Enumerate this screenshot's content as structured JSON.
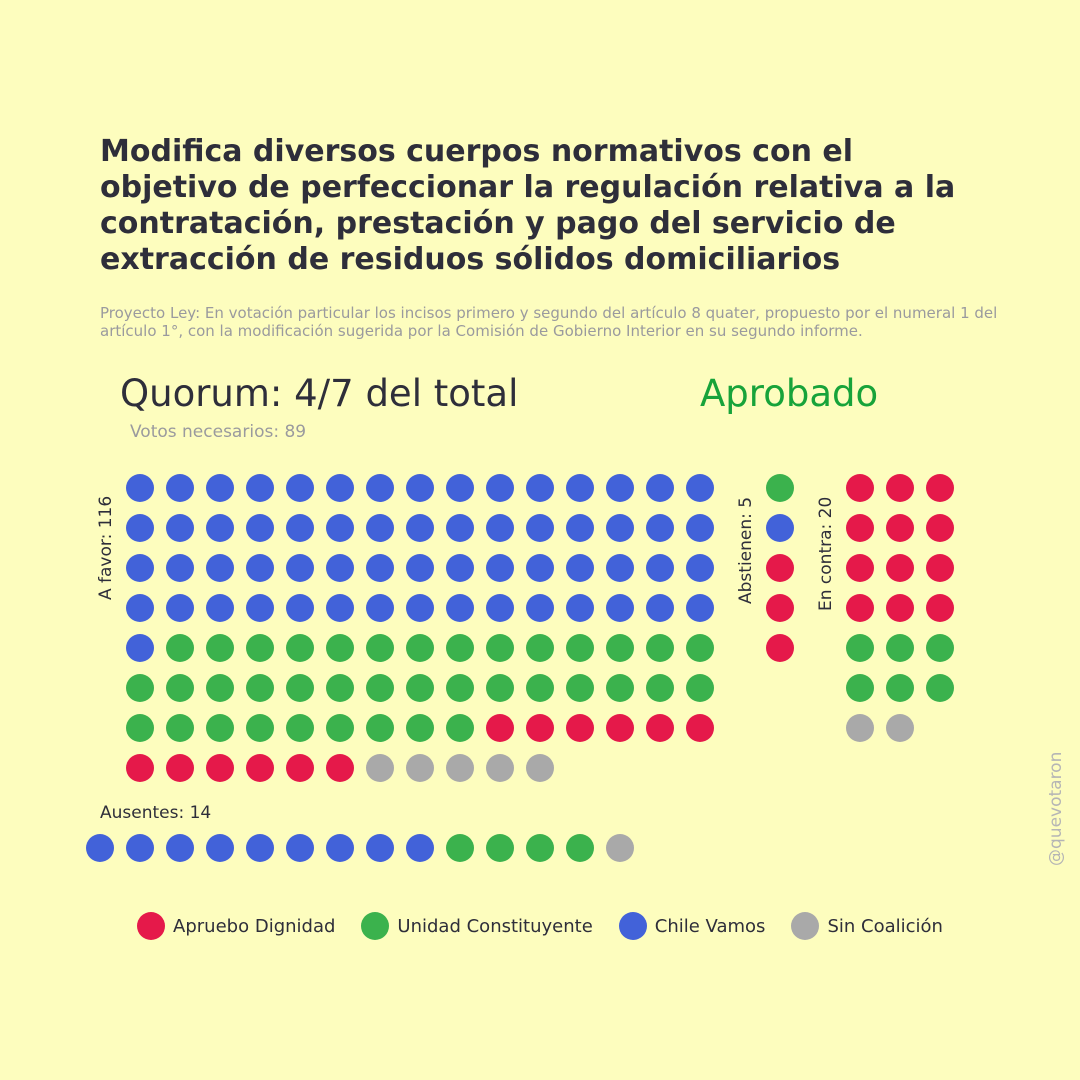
{
  "title": "Modifica diversos cuerpos normativos con el objetivo de perfeccionar la regulación relativa a la contratación, prestación y pago del servicio de extracción de residuos sólidos domiciliarios",
  "subtitle": "Proyecto Ley: En votación particular los incisos primero y segundo del artículo 8 quater, propuesto por el numeral 1 del artículo 1°, con la modificación sugerida por la Comisión de Gobierno Interior en su segundo informe.",
  "quorum": "Quorum: 4/7 del total",
  "result": "Aprobado",
  "votes_needed": "Votos necesarios: 89",
  "handle": "@quevotaron",
  "colors": {
    "apruebo_dignidad": "#E5194A",
    "unidad_constituyente": "#3BB24D",
    "chile_vamos": "#4262D9",
    "sin_coalicion": "#A9A9A9"
  },
  "chart_data": {
    "type": "waffle",
    "groups": [
      {
        "key": "a_favor",
        "label": "A favor: 116",
        "total": 116,
        "counts": {
          "chile_vamos": 61,
          "unidad_constituyente": 38,
          "apruebo_dignidad": 12,
          "sin_coalicion": 5
        }
      },
      {
        "key": "abstienen",
        "label": "Abstienen: 5",
        "total": 5,
        "counts": {
          "unidad_constituyente": 1,
          "chile_vamos": 1,
          "apruebo_dignidad": 3
        }
      },
      {
        "key": "en_contra",
        "label": "En contra: 20",
        "total": 20,
        "counts": {
          "apruebo_dignidad": 12,
          "unidad_constituyente": 6,
          "sin_coalicion": 2
        }
      },
      {
        "key": "ausentes",
        "label": "Ausentes: 14",
        "total": 14,
        "counts": {
          "chile_vamos": 9,
          "unidad_constituyente": 4,
          "sin_coalicion": 1
        }
      }
    ],
    "legend": [
      {
        "key": "apruebo_dignidad",
        "label": "Apruebo Dignidad"
      },
      {
        "key": "unidad_constituyente",
        "label": "Unidad Constituyente"
      },
      {
        "key": "chile_vamos",
        "label": "Chile Vamos"
      },
      {
        "key": "sin_coalicion",
        "label": "Sin Coalición"
      }
    ]
  }
}
